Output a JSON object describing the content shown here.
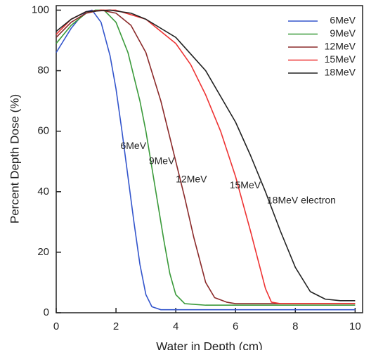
{
  "chart_data": {
    "type": "line",
    "x_label": "Water in Depth (cm)",
    "y_label": "Percent Depth Dose (%)",
    "xlim": [
      0,
      10.25
    ],
    "ylim": [
      0,
      101.5
    ],
    "xticks": [
      0,
      2,
      4,
      6,
      8,
      10
    ],
    "yticks": [
      0,
      20,
      40,
      60,
      80,
      100
    ],
    "legend": "upper right",
    "series": [
      {
        "name": "6MeV",
        "color": "#3355cc",
        "x": [
          0,
          0.25,
          0.5,
          0.75,
          1.0,
          1.2,
          1.5,
          1.8,
          2.0,
          2.2,
          2.4,
          2.6,
          2.8,
          3.0,
          3.2,
          3.5,
          4,
          6,
          8,
          10
        ],
        "values": [
          86,
          90,
          94,
          97,
          99.5,
          100,
          96,
          85,
          74,
          60,
          45,
          30,
          16,
          6,
          2,
          1,
          1,
          1,
          1,
          1
        ]
      },
      {
        "name": "9MeV",
        "color": "#3a9a3a",
        "x": [
          0,
          0.5,
          1.0,
          1.3,
          1.6,
          2.0,
          2.4,
          2.8,
          3.0,
          3.2,
          3.4,
          3.6,
          3.8,
          4.0,
          4.3,
          5,
          10
        ],
        "values": [
          89,
          95,
          99,
          100,
          100,
          96,
          86,
          70,
          60,
          48,
          36,
          24,
          13,
          6,
          3,
          2.5,
          2.5
        ]
      },
      {
        "name": "12MeV",
        "color": "#8b2a2a",
        "x": [
          0,
          0.5,
          1,
          1.5,
          2.0,
          2.5,
          3.0,
          3.5,
          4.0,
          4.3,
          4.6,
          5.0,
          5.3,
          5.7,
          6,
          10
        ],
        "values": [
          91,
          96,
          99,
          100,
          99,
          95,
          86,
          70,
          50,
          38,
          25,
          10,
          5,
          3.5,
          3,
          3
        ]
      },
      {
        "name": "15MeV",
        "color": "#ee3333",
        "x": [
          0,
          0.5,
          1,
          1.5,
          2,
          3,
          4,
          4.5,
          5.0,
          5.5,
          6.0,
          6.5,
          7.0,
          7.2,
          7.5,
          10
        ],
        "values": [
          92,
          97,
          99.5,
          100,
          100,
          97,
          89,
          82,
          72,
          60,
          45,
          27,
          8,
          3.5,
          3,
          3
        ]
      },
      {
        "name": "18MeV",
        "color": "#222222",
        "x": [
          0,
          0.5,
          1,
          1.8,
          2.5,
          3,
          4,
          5,
          6,
          6.5,
          7,
          7.5,
          8,
          8.5,
          9,
          9.5,
          10
        ],
        "values": [
          93,
          97,
          99.5,
          100,
          99,
          97,
          91,
          80,
          63,
          52,
          40,
          27,
          15,
          7,
          4.5,
          4,
          4
        ]
      }
    ],
    "annotations": [
      {
        "text": "6MeV",
        "color": "#3355cc"
      },
      {
        "text": "9MeV",
        "color": "#3a9a3a"
      },
      {
        "text": "12MeV",
        "color": "#8b2a2a"
      },
      {
        "text": "15MeV",
        "color": "#ee3333"
      },
      {
        "text": "18MeV electron",
        "color": "#222222"
      }
    ]
  }
}
